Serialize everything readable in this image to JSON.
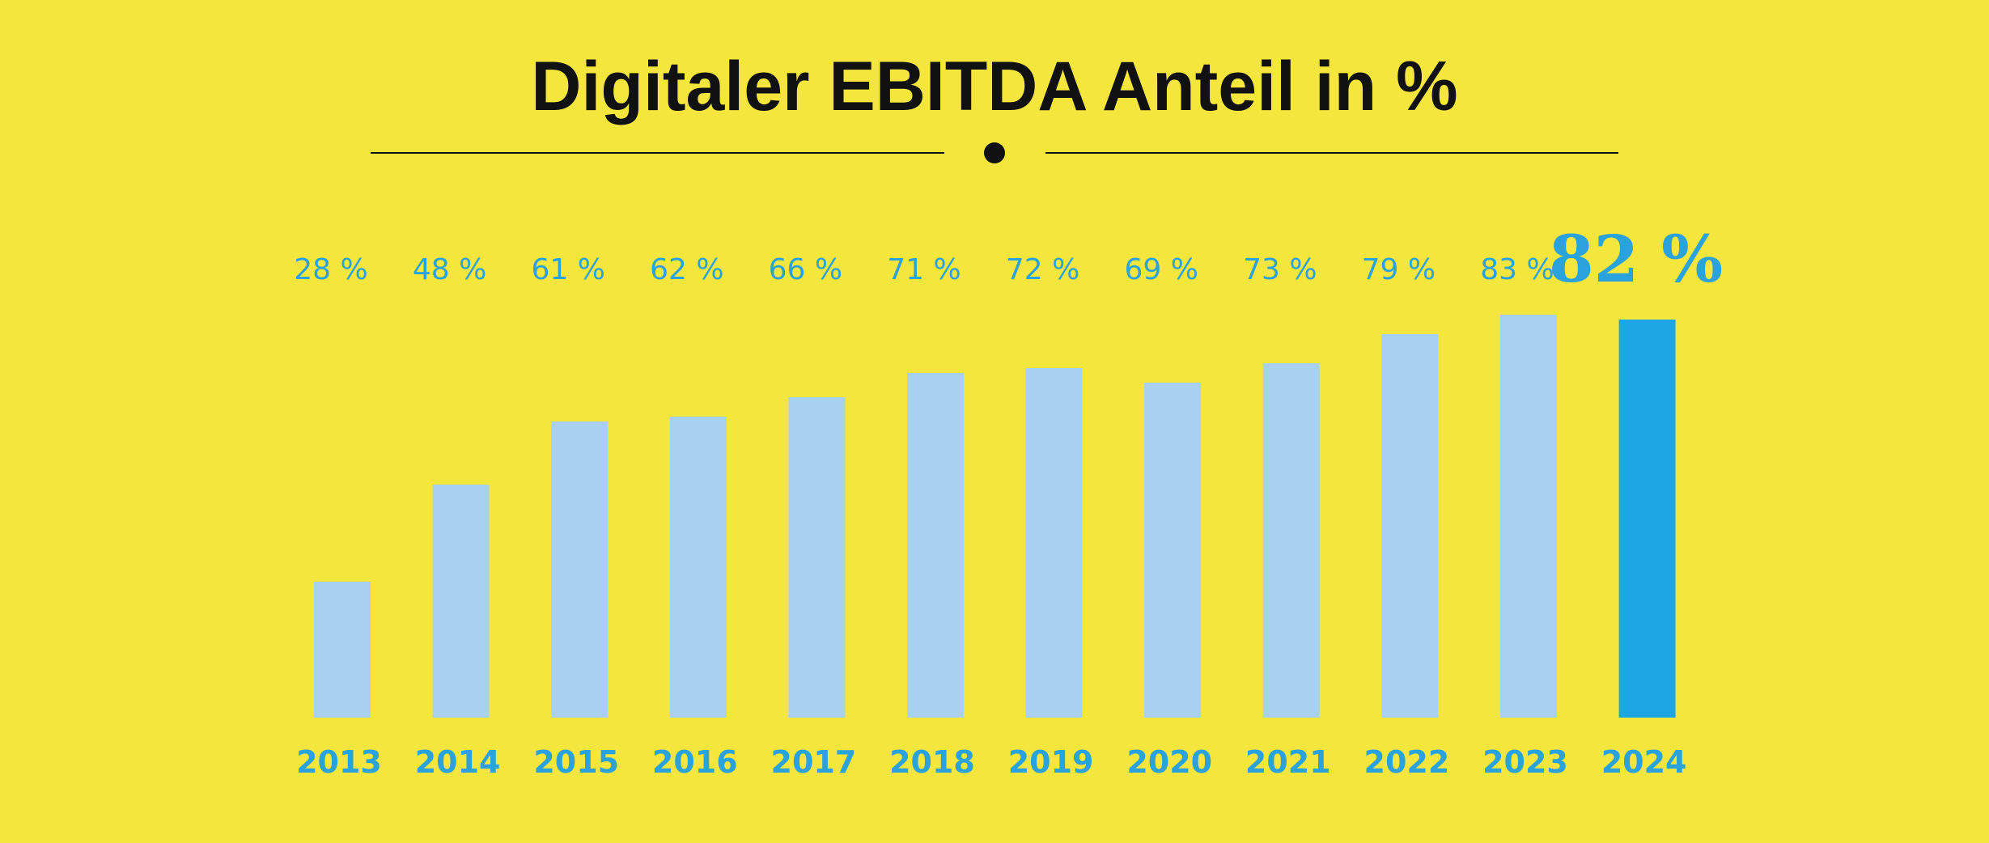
{
  "chart_data": {
    "type": "bar",
    "title": "Digitaler EBITDA Anteil in %",
    "xlabel": "",
    "ylabel": "",
    "categories": [
      "2013",
      "2014",
      "2015",
      "2016",
      "2017",
      "2018",
      "2019",
      "2020",
      "2021",
      "2022",
      "2023",
      "2024"
    ],
    "values": [
      28,
      48,
      61,
      62,
      66,
      71,
      72,
      69,
      73,
      79,
      83,
      82
    ],
    "value_labels": [
      "28 %",
      "48 %",
      "61 %",
      "62 %",
      "66 %",
      "71 %",
      "72 %",
      "69 %",
      "73 %",
      "79 %",
      "83 %",
      "82 %"
    ],
    "highlight_index": 11,
    "ylim": [
      0,
      100
    ],
    "grid": false,
    "legend": "none",
    "colors": {
      "background": "#F5E63D",
      "bar": "#A8D0F0",
      "bar_highlight": "#1EA5E3",
      "label": "#2AA3DC",
      "title": "#111111",
      "rule": "#111111"
    }
  }
}
